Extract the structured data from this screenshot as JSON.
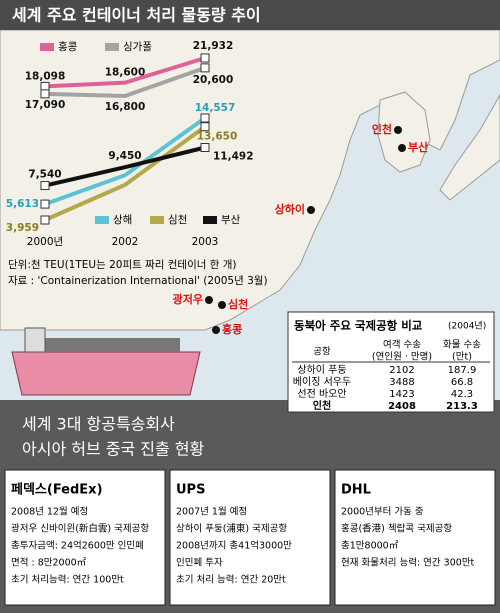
{
  "title": "세계 주요 컨테이너 처리 물동량 추이",
  "chart_data": {
    "type": "line",
    "categories": [
      "2000년",
      "2002",
      "2003"
    ],
    "series": [
      {
        "name": "홍콩",
        "color": "#e0609a",
        "values": [
          18098,
          18600,
          21932
        ],
        "value_labels": [
          "18,098",
          "18,600",
          "21,932"
        ]
      },
      {
        "name": "싱가폴",
        "color": "#a3a3a3",
        "values": [
          17090,
          16800,
          20600
        ],
        "value_labels": [
          "17,090",
          "16,800",
          "20,600"
        ]
      },
      {
        "name": "상해",
        "color": "#5cc3d6",
        "values": [
          5613,
          8610,
          14557
        ],
        "value_labels": [
          "5,613",
          null,
          "14,557"
        ]
      },
      {
        "name": "심천",
        "color": "#b3a84a",
        "values": [
          3959,
          7610,
          13650
        ],
        "value_labels": [
          "3,959",
          null,
          "13,650"
        ]
      },
      {
        "name": "부산",
        "color": "#111111",
        "values": [
          7540,
          9450,
          11492
        ],
        "value_labels": [
          "7,540",
          "9,450",
          "11,492"
        ]
      }
    ],
    "note": "단위:천 TEU(1TEU는 20피트 짜리 컨테이너 한 개)",
    "source": "자료 : 'Containerization International' (2005년 3월)"
  },
  "map": {
    "labels": [
      "인천",
      "부산",
      "상하이",
      "광저우",
      "심천",
      "홍콩"
    ]
  },
  "table": {
    "title": "동북아 주요 국제공항 비교",
    "year": "(2004년)",
    "headers": [
      [
        "공항"
      ],
      [
        "여객 수송",
        "(연인원 · 만명)"
      ],
      [
        "화물 수송",
        "(만t)"
      ]
    ],
    "rows": [
      [
        "상하이 푸둥",
        2102,
        187.9
      ],
      [
        "베이징 서우두",
        3488,
        66.8
      ],
      [
        "선전 바오안",
        1423,
        42.3
      ],
      [
        "인천",
        2408,
        213.3
      ]
    ]
  },
  "section": {
    "title_lines": [
      "세계 3대 항공특송회사",
      "아시아 허브 중국 진출 현황"
    ]
  },
  "companies": [
    {
      "name": "페덱스(FedEx)",
      "lines": [
        "2008년 12월 예정",
        "광저우 신바이윈(新白雲) 국제공항",
        "총투자금액: 24억2600만 인민폐",
        "면적 : 8만2000㎡",
        "초기 처리능력: 연간 100만t"
      ]
    },
    {
      "name": "UPS",
      "lines": [
        "2007년 1월 예정",
        "상하이 푸둥(浦東) 국제공항",
        "2008년까지 총41억3000만",
        "인민폐 투자",
        "초기 처리 능력: 연간 20만t"
      ]
    },
    {
      "name": "DHL",
      "lines": [
        "2000년부터 가동 중",
        "홍콩(香港) 첵랍콕 국제공항",
        "총1만8000㎡",
        "현재 화물처리 능력: 연간 300만t"
      ]
    }
  ]
}
